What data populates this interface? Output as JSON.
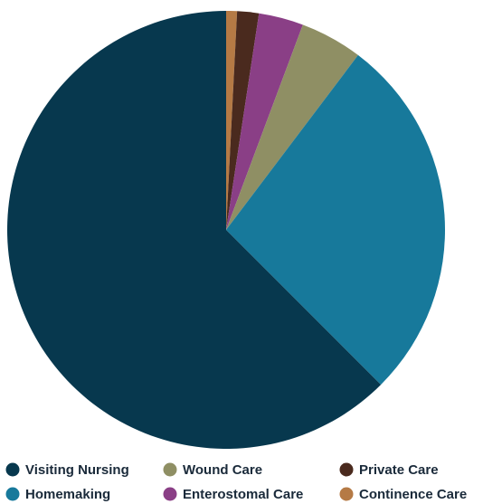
{
  "chart_data": {
    "type": "pie",
    "title": "",
    "start": "12 o'clock",
    "direction": "clockwise",
    "slices": [
      {
        "label": "Continence Care",
        "value": 0.8,
        "color": "#b57a45"
      },
      {
        "label": "Private Care",
        "value": 1.6,
        "color": "#4a2a1e"
      },
      {
        "label": "Enterostomal Care",
        "value": 3.3,
        "color": "#8a3f86"
      },
      {
        "label": "Wound Care",
        "value": 4.6,
        "color": "#8f8f64"
      },
      {
        "label": "Homemaking",
        "value": 27.2,
        "color": "#17799b"
      },
      {
        "label": "Visiting Nursing",
        "value": 62.5,
        "color": "#07384e"
      }
    ],
    "legend": {
      "placement": "bottom",
      "columns": [
        [
          "Visiting Nursing",
          "Homemaking"
        ],
        [
          "Wound Care",
          "Enterostomal Care"
        ],
        [
          "Private Care",
          "Continence Care"
        ]
      ]
    }
  }
}
